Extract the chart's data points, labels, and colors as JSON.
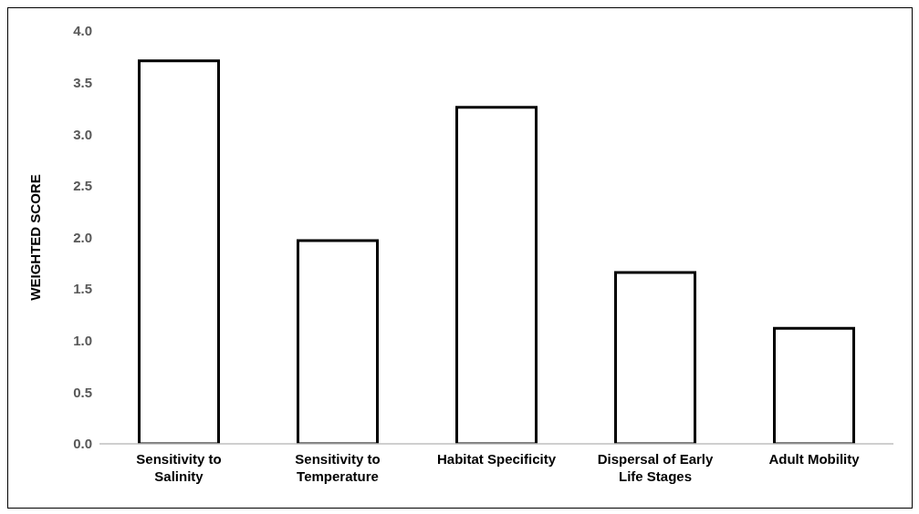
{
  "chart_data": {
    "type": "bar",
    "ylabel": "WEIGHTED SCORE",
    "categories": [
      "Sensitivity to Salinity",
      "Sensitivity to Temperature",
      "Habitat Specificity",
      "Dispersal of Early Life Stages",
      "Adult Mobility"
    ],
    "values": [
      3.71,
      1.97,
      3.26,
      1.66,
      1.12
    ],
    "color": "#ffffff",
    "ylim": [
      0,
      4
    ],
    "yticks": [
      {
        "value": 0,
        "label": "0.0"
      },
      0.5,
      {
        "value": 1,
        "label": "1.0"
      },
      1.5,
      {
        "value": 2,
        "label": "2.0"
      },
      2.5,
      {
        "value": 3,
        "label": "3.0"
      },
      3.5,
      {
        "value": 4,
        "label": "4.0"
      }
    ],
    "grid": false,
    "legend": false
  }
}
